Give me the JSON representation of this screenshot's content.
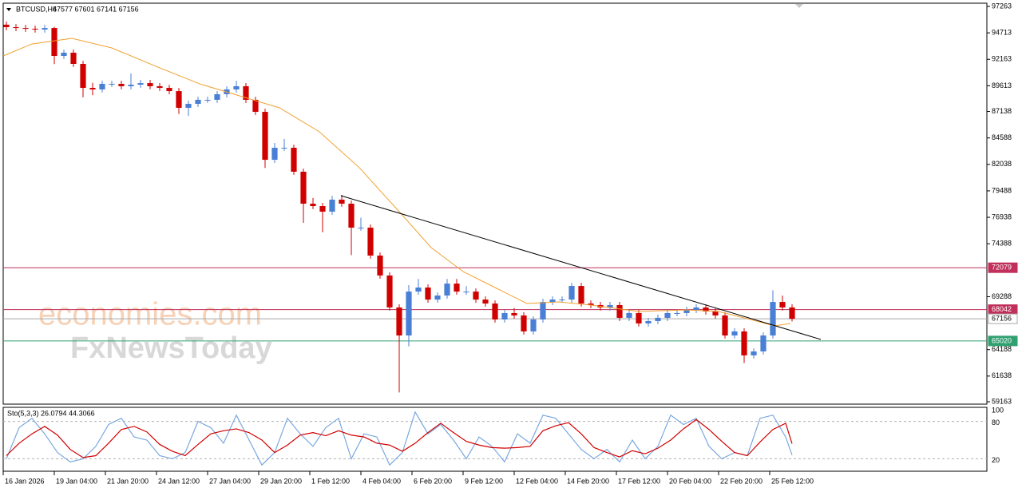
{
  "chart_data": [
    {
      "type": "candlestick",
      "title": "BTCUSD,H4",
      "ohlc_text": "67577 67601 67141 67156",
      "up_color": "#4a7fd6",
      "down_color": "#d10000",
      "xlim": [
        0,
        308
      ],
      "ylim": [
        58932,
        97571
      ],
      "xticks": [
        {
          "value": 0,
          "label": "16 Jan 2026"
        },
        {
          "value": 16,
          "label": "19 Jan 04:00"
        },
        {
          "value": 32,
          "label": "21 Jan 20:00"
        },
        {
          "value": 48,
          "label": "24 Jan 12:00"
        },
        {
          "value": 64,
          "label": "27 Jan 04:00"
        },
        {
          "value": 80,
          "label": "29 Jan 20:00"
        },
        {
          "value": 96,
          "label": "1 Feb 12:00"
        },
        {
          "value": 112,
          "label": "4 Feb 04:00"
        },
        {
          "value": 128,
          "label": "6 Feb 20:00"
        },
        {
          "value": 144,
          "label": "9 Feb 12:00"
        },
        {
          "value": 160,
          "label": "12 Feb 04:00"
        },
        {
          "value": 176,
          "label": "14 Feb 20:00"
        },
        {
          "value": 192,
          "label": "17 Feb 12:00"
        },
        {
          "value": 208,
          "label": "20 Feb 04:00"
        },
        {
          "value": 224,
          "label": "22 Feb 20:00"
        },
        {
          "value": 240,
          "label": "25 Feb 12:00"
        }
      ],
      "yticks": [
        97263,
        94713,
        92163,
        89613,
        87138,
        84588,
        82038,
        79488,
        76938,
        74388,
        69288,
        64188,
        61638,
        59163
      ],
      "x": [
        1,
        4,
        7,
        10,
        13,
        16,
        19,
        22,
        25,
        28,
        31,
        34,
        37,
        40,
        43,
        46,
        49,
        52,
        55,
        58,
        61,
        64,
        67,
        70,
        73,
        76,
        79,
        82,
        85,
        88,
        91,
        94,
        97,
        100,
        103,
        106,
        109,
        112,
        115,
        118,
        121,
        124,
        127,
        130,
        133,
        136,
        139,
        142,
        145,
        148,
        151,
        154,
        157,
        160,
        163,
        166,
        169,
        172,
        175,
        178,
        181,
        184,
        187,
        190,
        193,
        196,
        199,
        202,
        205,
        208,
        211,
        214,
        217,
        220,
        223,
        226,
        229,
        232,
        235,
        238,
        241,
        244,
        247
      ],
      "open": [
        95500,
        95260,
        95180,
        95110,
        95030,
        95180,
        92490,
        92800,
        91720,
        89410,
        89260,
        89800,
        89800,
        89570,
        89720,
        89870,
        89570,
        89410,
        89100,
        87490,
        87870,
        88260,
        88260,
        88800,
        89260,
        89570,
        88260,
        87100,
        82480,
        83640,
        83640,
        81330,
        78250,
        78020,
        77480,
        78640,
        78250,
        75940,
        75940,
        73250,
        71330,
        68250,
        65550,
        69780,
        70170,
        69010,
        69400,
        70550,
        69780,
        69780,
        69010,
        68630,
        67090,
        67710,
        67480,
        65940,
        67090,
        68780,
        69010,
        69010,
        70320,
        68630,
        68480,
        68250,
        68480,
        67250,
        67710,
        66710,
        66940,
        67250,
        67710,
        67710,
        68010,
        68250,
        67860,
        67480,
        65550,
        65940,
        63630,
        64010,
        65550,
        68780,
        68250
      ],
      "high": [
        95800,
        95560,
        95480,
        95410,
        95480,
        95300,
        93100,
        93100,
        92020,
        89900,
        90100,
        90100,
        90100,
        90800,
        90170,
        90170,
        89870,
        89710,
        89400,
        88170,
        88560,
        88560,
        89100,
        89560,
        90100,
        89870,
        88560,
        87400,
        84100,
        84500,
        83940,
        81630,
        78800,
        78320,
        79000,
        79100,
        78550,
        76900,
        76240,
        73550,
        71630,
        68550,
        70400,
        71000,
        70470,
        69700,
        71000,
        71000,
        70300,
        70080,
        69310,
        68930,
        68010,
        68200,
        67780,
        67390,
        69080,
        69310,
        69310,
        70620,
        70620,
        68930,
        68780,
        68780,
        68780,
        68010,
        68010,
        67240,
        67550,
        68010,
        68010,
        68310,
        68550,
        68550,
        68160,
        67780,
        66240,
        66240,
        64310,
        65850,
        69900,
        69400,
        68550
      ],
      "low": [
        94960,
        94880,
        94810,
        94730,
        94730,
        91700,
        92190,
        91420,
        88500,
        88700,
        88960,
        89500,
        89270,
        89270,
        89420,
        89270,
        89110,
        88800,
        86900,
        86700,
        87570,
        87960,
        87960,
        88500,
        88960,
        87960,
        86800,
        81700,
        82180,
        83340,
        81030,
        76400,
        77720,
        75500,
        77180,
        77950,
        73300,
        75640,
        72950,
        71030,
        67950,
        60060,
        64500,
        69480,
        68710,
        68710,
        69100,
        69480,
        69480,
        68710,
        68330,
        66790,
        66790,
        67180,
        65640,
        65640,
        66790,
        68480,
        68710,
        68710,
        68330,
        68180,
        67950,
        67950,
        66950,
        66950,
        66410,
        66410,
        66640,
        66950,
        67410,
        67410,
        67710,
        67560,
        67180,
        65250,
        65250,
        62900,
        63330,
        63710,
        65250,
        67950,
        66900
      ],
      "close": [
        95260,
        95180,
        95110,
        95030,
        95180,
        92490,
        92800,
        91720,
        89410,
        89260,
        89800,
        89800,
        89570,
        89720,
        89870,
        89570,
        89410,
        89100,
        87490,
        87870,
        88260,
        88260,
        88800,
        89260,
        89570,
        88260,
        87100,
        82480,
        83640,
        83640,
        81330,
        78250,
        78020,
        77480,
        78640,
        78250,
        75940,
        75940,
        73250,
        71330,
        68250,
        65550,
        69780,
        70170,
        69010,
        69400,
        70550,
        69780,
        69780,
        69010,
        68630,
        67090,
        67710,
        67480,
        65940,
        67090,
        68780,
        69010,
        69010,
        70320,
        68630,
        68480,
        68250,
        68480,
        67250,
        67710,
        66710,
        66940,
        67250,
        67710,
        67710,
        68010,
        68250,
        67860,
        67480,
        65550,
        65940,
        63630,
        64010,
        65550,
        68780,
        68250,
        67156
      ],
      "ma": {
        "color": "#f0a030",
        "x": [
          0,
          9,
          21.5,
          34,
          49,
          61.5,
          74,
          86.5,
          99,
          111.5,
          124,
          134,
          144,
          154,
          164,
          174,
          184,
          199,
          214,
          224,
          234,
          241.5,
          246.5
        ],
        "values": [
          92491,
          93640,
          94180,
          93260,
          91340,
          89800,
          88640,
          87490,
          85180,
          81720,
          77480,
          74020,
          71710,
          70170,
          68630,
          68780,
          68480,
          67860,
          68010,
          67860,
          67090,
          66480,
          66710
        ]
      },
      "trendline": {
        "color": "#000000",
        "x": [
          105.75,
          256
        ],
        "values": [
          79021,
          65167
        ]
      },
      "levels": [
        {
          "value": 72079,
          "color": "#c0305a"
        },
        {
          "value": 68042,
          "color": "#c0305a"
        },
        {
          "value": 65020,
          "color": "#30a070"
        }
      ],
      "last_price": {
        "value": 67156,
        "color": "#a8a8a8"
      },
      "watermark": [
        "economies.com",
        "FxNewsToday"
      ]
    },
    {
      "type": "line",
      "title": "Sto(5,3,3) 26.0794 44.3066",
      "xlim": [
        0,
        308
      ],
      "ylim": [
        0,
        100
      ],
      "yticks": [
        100,
        80,
        20
      ],
      "x": [
        1,
        5,
        9,
        13,
        17,
        21,
        25,
        29,
        33,
        37,
        41,
        45,
        49,
        53,
        57,
        61,
        65,
        69,
        73,
        77,
        81,
        85,
        89,
        93,
        97,
        101,
        105,
        109,
        113,
        117,
        121,
        125,
        129,
        133,
        137,
        141,
        145,
        149,
        153,
        157,
        161,
        165,
        169,
        173,
        177,
        181,
        185,
        189,
        193,
        197,
        201,
        205,
        209,
        213,
        217,
        221,
        225,
        229,
        233,
        237,
        241,
        245,
        247
      ],
      "series": [
        {
          "color": "#7aa8e0",
          "values": [
            20,
            70,
            85,
            60,
            30,
            15,
            20,
            40,
            75,
            85,
            55,
            50,
            25,
            20,
            30,
            80,
            70,
            45,
            90,
            50,
            10,
            30,
            85,
            60,
            40,
            70,
            85,
            20,
            60,
            55,
            10,
            30,
            95,
            60,
            75,
            50,
            20,
            55,
            40,
            15,
            60,
            45,
            90,
            85,
            60,
            35,
            20,
            35,
            15,
            50,
            20,
            40,
            90,
            75,
            85,
            40,
            20,
            30,
            25,
            85,
            90,
            55,
            26.0794
          ]
        },
        {
          "color": "#d10000",
          "values": [
            25,
            45,
            60,
            72,
            58,
            35,
            22,
            25,
            45,
            67,
            72,
            63,
            43,
            32,
            25,
            43,
            60,
            65,
            68,
            62,
            50,
            30,
            42,
            58,
            62,
            57,
            65,
            58,
            55,
            45,
            42,
            32,
            45,
            62,
            77,
            62,
            48,
            42,
            38,
            37,
            38,
            40,
            65,
            73,
            78,
            60,
            38,
            30,
            23,
            33,
            28,
            37,
            50,
            68,
            83,
            67,
            48,
            30,
            25,
            47,
            67,
            77,
            44.3066
          ]
        }
      ]
    }
  ]
}
